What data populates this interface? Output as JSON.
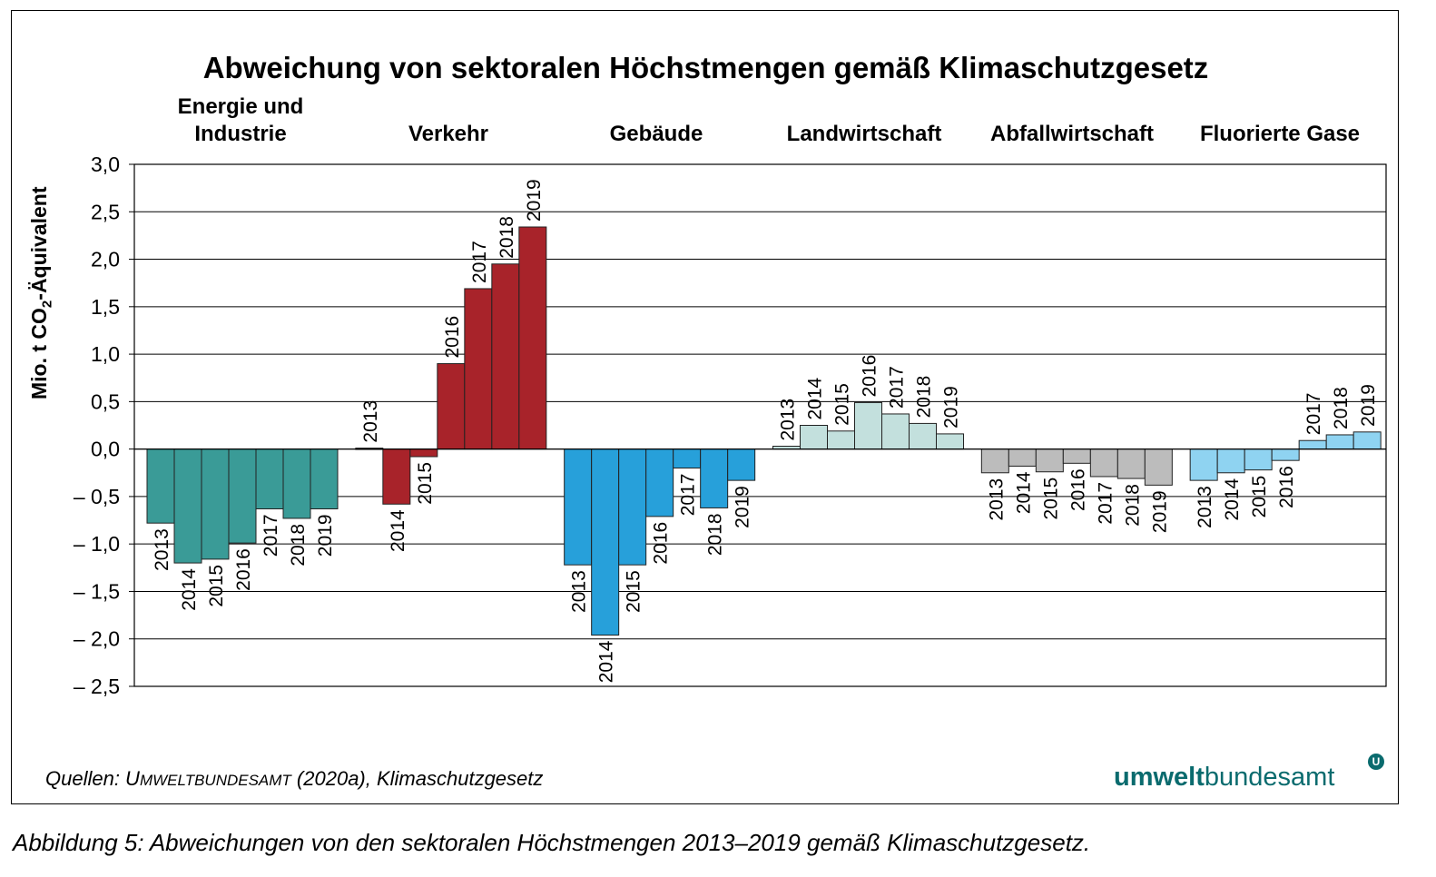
{
  "chart_data": {
    "type": "bar",
    "title": "Abweichung von sektoralen Höchstmengen gemäß Klimaschutzgesetz",
    "ylabel": "Mio. t CO2-Äquivalent",
    "ylim": [
      -2.5,
      3.0
    ],
    "yticks": [
      "3,0",
      "2,5",
      "2,0",
      "1,5",
      "1,0",
      "0,5",
      "0,0",
      "– 0,5",
      "– 1,0",
      "– 1,5",
      "– 2,0",
      "– 2,5"
    ],
    "years": [
      "2013",
      "2014",
      "2015",
      "2016",
      "2017",
      "2018",
      "2019"
    ],
    "grid": true,
    "groups": [
      {
        "name": "Energie und Industrie",
        "name_line1": "Energie und",
        "name_line2": "Industrie",
        "color": "#3a9b97",
        "values": [
          -0.78,
          -1.2,
          -1.16,
          -0.99,
          -0.63,
          -0.73,
          -0.63
        ]
      },
      {
        "name": "Verkehr",
        "color": "#a8232a",
        "values": [
          0.01,
          -0.58,
          -0.08,
          0.9,
          1.69,
          1.95,
          2.34
        ]
      },
      {
        "name": "Gebäude",
        "color": "#27a0da",
        "values": [
          -1.22,
          -1.96,
          -1.22,
          -0.71,
          -0.2,
          -0.62,
          -0.33
        ]
      },
      {
        "name": "Landwirtschaft",
        "color": "#c3e0dd",
        "values": [
          0.03,
          0.25,
          0.19,
          0.49,
          0.37,
          0.27,
          0.16
        ]
      },
      {
        "name": "Abfallwirtschaft",
        "color": "#bcbcbc",
        "values": [
          -0.25,
          -0.18,
          -0.24,
          -0.15,
          -0.29,
          -0.31,
          -0.38
        ]
      },
      {
        "name": "Fluorierte Gase",
        "color": "#8fd3f1",
        "values": [
          -0.33,
          -0.25,
          -0.22,
          -0.12,
          0.09,
          0.15,
          0.18
        ]
      }
    ]
  },
  "source": {
    "prefix": "Quellen: U",
    "smallcaps": "MWELTBUNDESAMT",
    "suffix": " (2020a), Klimaschutzgesetz"
  },
  "logo": {
    "bold": "umwelt",
    "regular": "bundesamt",
    "mark": "U"
  },
  "caption": "Abbildung 5:   Abweichungen von den sektoralen Höchstmengen 2013–2019 gemäß Klimaschutzgesetz."
}
